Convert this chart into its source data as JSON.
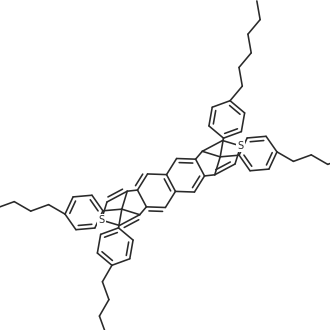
{
  "bg": "#ffffff",
  "lc": "#2a2a2a",
  "lw": 1.15,
  "s_fontsize": 7,
  "figsize": [
    3.3,
    3.3
  ],
  "dpi": 100
}
